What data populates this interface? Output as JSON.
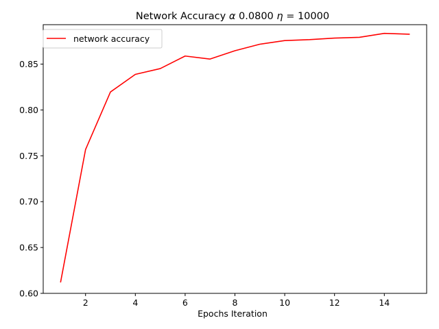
{
  "chart_data": {
    "type": "line",
    "title_parts": [
      "Network Accuracy ",
      "α",
      " 0.0800 ",
      "η",
      " = 10000"
    ],
    "xlabel": "Epochs Iteration",
    "ylabel": "",
    "xlim": [
      0.3,
      15.7
    ],
    "ylim": [
      0.6,
      0.893
    ],
    "xticks": [
      2,
      4,
      6,
      8,
      10,
      12,
      14
    ],
    "yticks": [
      0.6,
      0.65,
      0.7,
      0.75,
      0.8,
      0.85
    ],
    "ytick_labels": [
      "0.60",
      "0.65",
      "0.70",
      "0.75",
      "0.80",
      "0.85"
    ],
    "legend_position": "upper-left",
    "series": [
      {
        "name": "network accuracy",
        "color": "#ff0000",
        "x": [
          1,
          2,
          3,
          4,
          5,
          6,
          7,
          8,
          9,
          10,
          11,
          12,
          13,
          14,
          15
        ],
        "y": [
          0.6125,
          0.7568,
          0.8196,
          0.8388,
          0.8451,
          0.8588,
          0.8555,
          0.8646,
          0.8717,
          0.8757,
          0.8767,
          0.8784,
          0.8792,
          0.8835,
          0.8826
        ]
      }
    ]
  }
}
